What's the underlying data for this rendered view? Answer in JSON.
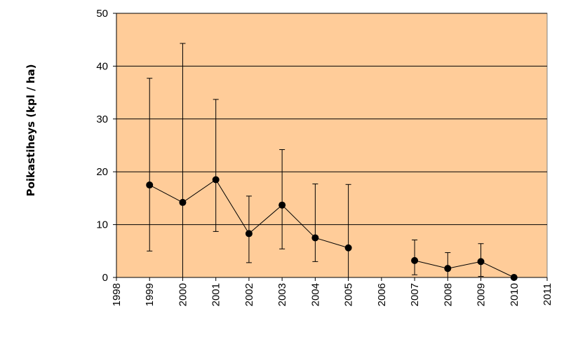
{
  "chart_data": {
    "type": "scatter",
    "title": "",
    "xlabel": "",
    "ylabel": "Poikastiheys (kpl / ha)",
    "xlim": [
      1998,
      2011
    ],
    "ylim": [
      0,
      50
    ],
    "x_categories": [
      "1998",
      "1999",
      "2000",
      "2001",
      "2002",
      "2003",
      "2004",
      "2005",
      "2006",
      "2007",
      "2008",
      "2009",
      "2010",
      "2011"
    ],
    "y_ticks": [
      0,
      10,
      20,
      30,
      40,
      50
    ],
    "grid": true,
    "legend": "none",
    "series": [
      {
        "points": [
          {
            "x": 1999,
            "y": 17.5,
            "err_low": 5.0,
            "err_high": 37.7
          },
          {
            "x": 2000,
            "y": 14.2,
            "err_low": 0.0,
            "err_high": 44.3
          },
          {
            "x": 2001,
            "y": 18.5,
            "err_low": 8.7,
            "err_high": 33.7
          },
          {
            "x": 2002,
            "y": 8.3,
            "err_low": 2.8,
            "err_high": 15.4
          },
          {
            "x": 2003,
            "y": 13.7,
            "err_low": 5.4,
            "err_high": 24.2
          },
          {
            "x": 2004,
            "y": 7.5,
            "err_low": 3.0,
            "err_high": 17.7
          },
          {
            "x": 2005,
            "y": 5.6,
            "err_low": 0.0,
            "err_high": 17.6
          },
          {
            "x": 2007,
            "y": 3.2,
            "err_low": 0.5,
            "err_high": 7.1
          },
          {
            "x": 2008,
            "y": 1.7,
            "err_low": 0.0,
            "err_high": 4.7
          },
          {
            "x": 2009,
            "y": 3.0,
            "err_low": 0.2,
            "err_high": 6.4
          },
          {
            "x": 2010,
            "y": 0.0,
            "err_low": 0.0,
            "err_high": 0.0
          }
        ],
        "segments": [
          [
            1999,
            2005
          ],
          [
            2007,
            2010
          ]
        ]
      }
    ],
    "colors": {
      "plot_background": "#FFCC99",
      "gridline": "#000000",
      "marker": "#000000",
      "line": "#000000",
      "error_bar": "#000000"
    }
  }
}
